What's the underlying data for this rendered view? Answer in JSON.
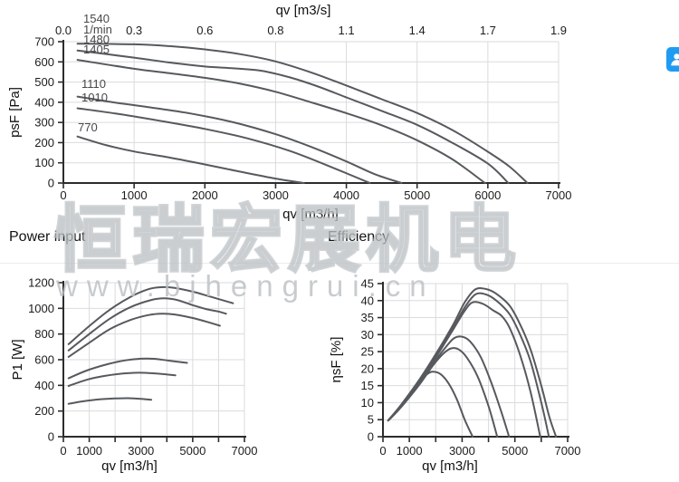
{
  "watermark": {
    "line1": "恒瑞宏展机电",
    "line2": "www.bjhengrui.cn"
  },
  "sections": {
    "power_title": "Power input",
    "efficiency_title": "Efficiency"
  },
  "side_button": {
    "icon": "contact-icon",
    "color": "#1e9cf2"
  },
  "colors": {
    "curve": "#56595d",
    "grid": "#dadbdc",
    "axis": "#2c2c2c",
    "watermark": "#c5c9cd"
  },
  "chart_data": [
    {
      "id": "pressure",
      "type": "line",
      "title": "",
      "xlabel": "qv [m3/h]",
      "x2label": "qv [m3/s]",
      "ylabel": "psF [Pa]",
      "xlim": [
        0,
        7000
      ],
      "ylim": [
        0,
        700
      ],
      "grid": true,
      "legend_position": "none",
      "xticks": [
        0,
        1000,
        2000,
        3000,
        4000,
        5000,
        6000,
        7000
      ],
      "xtick_labels": [
        "0",
        "1000",
        "2000",
        "3000",
        "4000",
        "5000",
        "6000",
        "7000"
      ],
      "x2tick_labels": [
        "0.0",
        "0.3",
        "0.6",
        "0.8",
        "1.1",
        "1.4",
        "1.7",
        "1.9"
      ],
      "yticks": [
        0,
        100,
        200,
        300,
        400,
        500,
        600,
        700
      ],
      "annotations": [
        {
          "text": "1540",
          "x": 282,
          "y": 794
        },
        {
          "text": "1/min",
          "x": 282,
          "y": 740
        },
        {
          "text": "1480",
          "x": 282,
          "y": 691
        },
        {
          "text": "1405",
          "x": 282,
          "y": 642
        },
        {
          "text": "1110",
          "x": 256,
          "y": 471
        },
        {
          "text": "1010",
          "x": 256,
          "y": 404
        },
        {
          "text": "770",
          "x": 205,
          "y": 256
        }
      ],
      "series": [
        {
          "name": "1540",
          "points": [
            [
              200,
              690
            ],
            [
              1000,
              687
            ],
            [
              1500,
              678
            ],
            [
              2000,
              662
            ],
            [
              2500,
              638
            ],
            [
              3000,
              602
            ],
            [
              3500,
              548
            ],
            [
              4000,
              483
            ],
            [
              4500,
              415
            ],
            [
              5000,
              347
            ],
            [
              5500,
              262
            ],
            [
              6000,
              155
            ],
            [
              6300,
              83
            ],
            [
              6560,
              0
            ]
          ]
        },
        {
          "name": "1480",
          "points": [
            [
              200,
              656
            ],
            [
              1000,
              621
            ],
            [
              1500,
              597
            ],
            [
              2000,
              577
            ],
            [
              2400,
              568
            ],
            [
              2800,
              556
            ],
            [
              3200,
              523
            ],
            [
              3600,
              478
            ],
            [
              4000,
              424
            ],
            [
              4500,
              357
            ],
            [
              5000,
              288
            ],
            [
              5500,
              199
            ],
            [
              6000,
              96
            ],
            [
              6290,
              0
            ]
          ]
        },
        {
          "name": "1405",
          "points": [
            [
              200,
              610
            ],
            [
              1000,
              566
            ],
            [
              1500,
              544
            ],
            [
              2000,
              521
            ],
            [
              2500,
              492
            ],
            [
              3000,
              452
            ],
            [
              3500,
              400
            ],
            [
              4000,
              346
            ],
            [
              4500,
              286
            ],
            [
              5000,
              212
            ],
            [
              5500,
              117
            ],
            [
              5960,
              0
            ]
          ]
        },
        {
          "name": "1110",
          "points": [
            [
              200,
              428
            ],
            [
              700,
              400
            ],
            [
              1200,
              376
            ],
            [
              1800,
              344
            ],
            [
              2400,
              301
            ],
            [
              3000,
              242
            ],
            [
              3500,
              179
            ],
            [
              4000,
              107
            ],
            [
              4400,
              44
            ],
            [
              4780,
              0
            ]
          ]
        },
        {
          "name": "1010",
          "points": [
            [
              200,
              370
            ],
            [
              800,
              341
            ],
            [
              1400,
              306
            ],
            [
              2000,
              268
            ],
            [
              2600,
              221
            ],
            [
              3200,
              159
            ],
            [
              3800,
              77
            ],
            [
              4330,
              0
            ]
          ]
        },
        {
          "name": "770",
          "points": [
            [
              200,
              230
            ],
            [
              600,
              188
            ],
            [
              1000,
              156
            ],
            [
              1500,
              126
            ],
            [
              2000,
              92
            ],
            [
              2500,
              56
            ],
            [
              3000,
              22
            ],
            [
              3400,
              0
            ]
          ]
        }
      ]
    },
    {
      "id": "power",
      "type": "line",
      "title": "Power input",
      "xlabel": "qv [m3/h]",
      "ylabel": "P1 [W]",
      "xlim": [
        0,
        7000
      ],
      "ylim": [
        0,
        1200
      ],
      "grid": true,
      "legend_position": "none",
      "xticks": [
        0,
        1000,
        2000,
        3000,
        4000,
        5000,
        6000,
        7000
      ],
      "xtick_labels": [
        "0",
        "1000",
        "",
        "3000",
        "",
        "5000",
        "",
        "7000"
      ],
      "yticks": [
        0,
        200,
        400,
        600,
        800,
        1000,
        1200
      ],
      "series": [
        {
          "name": "1540",
          "points": [
            [
              200,
              721
            ],
            [
              1000,
              862
            ],
            [
              1800,
              990
            ],
            [
              2600,
              1090
            ],
            [
              3300,
              1150
            ],
            [
              3800,
              1165
            ],
            [
              4300,
              1160
            ],
            [
              5000,
              1130
            ],
            [
              5700,
              1090
            ],
            [
              6560,
              1040
            ]
          ]
        },
        {
          "name": "1480",
          "points": [
            [
              200,
              672
            ],
            [
              1000,
              800
            ],
            [
              1800,
              920
            ],
            [
              2600,
              1010
            ],
            [
              3400,
              1065
            ],
            [
              3900,
              1078
            ],
            [
              4400,
              1065
            ],
            [
              5000,
              1025
            ],
            [
              5500,
              995
            ],
            [
              6000,
              975
            ],
            [
              6290,
              958
            ]
          ]
        },
        {
          "name": "1405",
          "points": [
            [
              200,
              622
            ],
            [
              1000,
              732
            ],
            [
              1800,
              838
            ],
            [
              2600,
              910
            ],
            [
              3300,
              948
            ],
            [
              3800,
              958
            ],
            [
              4300,
              952
            ],
            [
              5000,
              925
            ],
            [
              5500,
              898
            ],
            [
              6050,
              865
            ]
          ]
        },
        {
          "name": "1110",
          "points": [
            [
              200,
              455
            ],
            [
              900,
              515
            ],
            [
              1700,
              565
            ],
            [
              2400,
              595
            ],
            [
              3000,
              608
            ],
            [
              3500,
              607
            ],
            [
              4100,
              592
            ],
            [
              4780,
              575
            ]
          ]
        },
        {
          "name": "1010",
          "points": [
            [
              200,
              395
            ],
            [
              900,
              443
            ],
            [
              1600,
              474
            ],
            [
              2300,
              492
            ],
            [
              2900,
              498
            ],
            [
              3400,
              495
            ],
            [
              3900,
              487
            ],
            [
              4330,
              478
            ]
          ]
        },
        {
          "name": "770",
          "points": [
            [
              200,
              256
            ],
            [
              800,
              277
            ],
            [
              1400,
              291
            ],
            [
              2000,
              298
            ],
            [
              2500,
              300
            ],
            [
              3000,
              295
            ],
            [
              3400,
              287
            ]
          ]
        }
      ]
    },
    {
      "id": "eff",
      "type": "line",
      "title": "Efficiency",
      "xlabel": "qv [m3/h]",
      "ylabel": "ηsF [%]",
      "xlim": [
        0,
        7000
      ],
      "ylim": [
        0,
        45
      ],
      "grid": true,
      "legend_position": "none",
      "xticks": [
        0,
        1000,
        2000,
        3000,
        4000,
        5000,
        6000,
        7000
      ],
      "xtick_labels": [
        "0",
        "1000",
        "",
        "3000",
        "",
        "5000",
        "",
        "7000"
      ],
      "yticks": [
        0,
        5,
        10,
        15,
        20,
        25,
        30,
        35,
        40,
        45
      ],
      "series": [
        {
          "name": "1540",
          "points": [
            [
              200,
              4.8
            ],
            [
              700,
              9.5
            ],
            [
              1400,
              17
            ],
            [
              2100,
              25.5
            ],
            [
              2700,
              33.5
            ],
            [
              3100,
              39.5
            ],
            [
              3500,
              43.3
            ],
            [
              3900,
              43.4
            ],
            [
              4300,
              42
            ],
            [
              4800,
              38.5
            ],
            [
              5200,
              33
            ],
            [
              5600,
              25.5
            ],
            [
              6000,
              15
            ],
            [
              6300,
              6
            ],
            [
              6560,
              0
            ]
          ]
        },
        {
          "name": "1480",
          "points": [
            [
              200,
              4.8
            ],
            [
              700,
              9.3
            ],
            [
              1400,
              16.5
            ],
            [
              2100,
              25
            ],
            [
              2700,
              32.5
            ],
            [
              3100,
              38
            ],
            [
              3500,
              41.8
            ],
            [
              3900,
              41.8
            ],
            [
              4300,
              40
            ],
            [
              4800,
              36
            ],
            [
              5200,
              30
            ],
            [
              5600,
              22
            ],
            [
              6000,
              10
            ],
            [
              6290,
              0
            ]
          ]
        },
        {
          "name": "1405",
          "points": [
            [
              200,
              4.8
            ],
            [
              700,
              9.2
            ],
            [
              1400,
              16.3
            ],
            [
              2100,
              24.5
            ],
            [
              2700,
              32
            ],
            [
              3100,
              37
            ],
            [
              3400,
              39.5
            ],
            [
              3800,
              39
            ],
            [
              4200,
              37
            ],
            [
              4500,
              35.5
            ],
            [
              4800,
              32
            ],
            [
              5200,
              24
            ],
            [
              5600,
              13
            ],
            [
              5960,
              0
            ]
          ]
        },
        {
          "name": "1110",
          "points": [
            [
              200,
              4.8
            ],
            [
              700,
              9
            ],
            [
              1400,
              16
            ],
            [
              2000,
              22.5
            ],
            [
              2400,
              26.5
            ],
            [
              2700,
              29
            ],
            [
              3000,
              29.4
            ],
            [
              3300,
              28
            ],
            [
              3700,
              23.5
            ],
            [
              4100,
              16
            ],
            [
              4500,
              7
            ],
            [
              4780,
              0
            ]
          ]
        },
        {
          "name": "1010",
          "points": [
            [
              200,
              4.8
            ],
            [
              700,
              8.8
            ],
            [
              1400,
              15.5
            ],
            [
              1900,
              21
            ],
            [
              2300,
              24.5
            ],
            [
              2600,
              26
            ],
            [
              2900,
              25.5
            ],
            [
              3200,
              23
            ],
            [
              3600,
              17.5
            ],
            [
              4000,
              9
            ],
            [
              4330,
              0
            ]
          ]
        },
        {
          "name": "770",
          "points": [
            [
              200,
              4.7
            ],
            [
              600,
              8
            ],
            [
              1000,
              12.3
            ],
            [
              1400,
              16.3
            ],
            [
              1700,
              18.5
            ],
            [
              1900,
              19.1
            ],
            [
              2200,
              18.3
            ],
            [
              2500,
              15.5
            ],
            [
              2800,
              11
            ],
            [
              3100,
              5
            ],
            [
              3400,
              0
            ]
          ]
        }
      ]
    }
  ]
}
